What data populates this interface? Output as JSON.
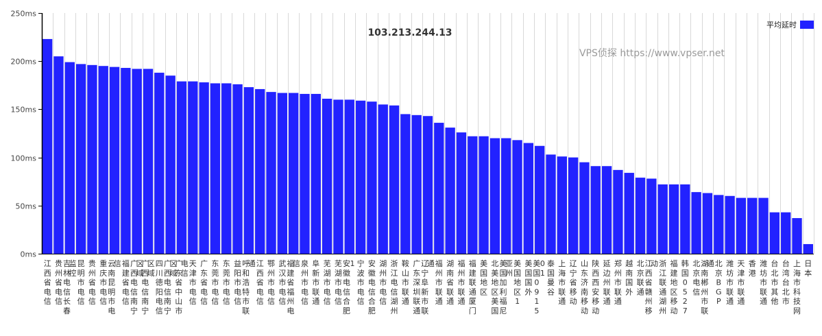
{
  "watermark": "VPS侦探 https://www.vpser.net",
  "chart_data": {
    "type": "bar",
    "title": "103.213.244.13",
    "xlabel": "",
    "ylabel": "",
    "ylim": [
      0,
      250
    ],
    "yticks": [
      0,
      50,
      100,
      150,
      200,
      250
    ],
    "ytick_labels": [
      "0ms",
      "50ms",
      "100ms",
      "150ms",
      "200ms",
      "250ms"
    ],
    "grid": true,
    "legend_position": "top-right",
    "colors": {
      "bar": "#2222ff",
      "grid": "#d8d8d8",
      "axis": "#000000"
    },
    "categories": [
      "江西省电信",
      "贵州省电信",
      "吉林电信长春监控",
      "昆明市电信",
      "贵州省电信",
      "重庆市电信",
      "云南昆明市电信",
      "福建省电信",
      "广西电信南宁区域",
      "广西电信南宁区域",
      "四川德阳电信",
      "广西电信南宁区域",
      "广东省中山市电信",
      "天津市电信",
      "广东省电信",
      "东莞市电信",
      "东莞市电信",
      "益阳市电信",
      "呼和浩特市联通",
      "江西省电信",
      "鄂州市电信",
      "武汉市电信",
      "福建省福州电信",
      "泉州市电信",
      "阜新市联通",
      "芜湖市电信",
      "芜湖市电信",
      "安徽电信合肥1",
      "宁波市电信",
      "安徽电信合肥",
      "湖州市电信",
      "浙江电信湖州",
      "鞍山市联通",
      "广东深圳联通",
      "辽宁阜新市联通",
      "福州市联通",
      "湖南省联通",
      "福州市联通",
      "福建联通厦门",
      "美国地区",
      "北美地区美国",
      "美国加利福尼亚州",
      "美国地区1",
      "美国国外",
      "美国0915 01",
      "泰国曼谷",
      "上海市联通",
      "辽宁省移动",
      "山东济南移动",
      "陕西西安移动",
      "延边州联通",
      "郑州市联通",
      "越南国外",
      "北京联通",
      "江西省赣州移动",
      "浙江联通湖州",
      "福建地区移动",
      "韩国0527",
      "北京电信",
      "湖南郴州市联通",
      "北京BGP",
      "潍坊市联通",
      "天津市联通",
      "香港",
      "潍坊市联通",
      "台北市其他",
      "台湾台北市",
      "上海市科技网",
      "日本"
    ],
    "series": [
      {
        "name": "平均延时",
        "values": [
          223,
          205,
          199,
          197,
          196,
          195,
          194,
          193,
          192,
          192,
          188,
          185,
          179,
          179,
          178,
          177,
          177,
          176,
          173,
          171,
          168,
          167,
          167,
          166,
          166,
          161,
          160,
          160,
          159,
          158,
          155,
          154,
          145,
          144,
          143,
          136,
          131,
          126,
          122,
          122,
          120,
          120,
          118,
          115,
          112,
          103,
          101,
          100,
          95,
          91,
          91,
          87,
          84,
          79,
          78,
          72,
          72,
          72,
          64,
          63,
          61,
          60,
          58,
          58,
          58,
          43,
          43,
          37,
          10
        ]
      }
    ]
  }
}
